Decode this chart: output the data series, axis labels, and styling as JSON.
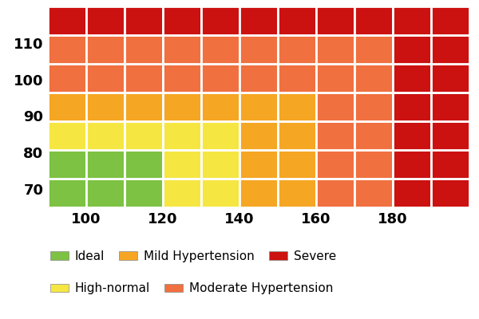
{
  "x_ticks": [
    100,
    120,
    140,
    160,
    180
  ],
  "y_ticks": [
    70,
    80,
    90,
    100,
    110
  ],
  "colors": {
    "ideal": "#7DC242",
    "high_normal": "#F5E642",
    "mild": "#F5A623",
    "moderate": "#F07040",
    "severe": "#CC1111"
  },
  "legend_items": [
    {
      "label": "Ideal",
      "color": "#7DC242"
    },
    {
      "label": "High-normal",
      "color": "#F5E642"
    },
    {
      "label": "Mild Hypertension",
      "color": "#F5A623"
    },
    {
      "label": "Moderate Hypertension",
      "color": "#F07040"
    },
    {
      "label": "Severe",
      "color": "#CC1111"
    }
  ],
  "background_color": "#ffffff",
  "grid_color": "#ffffff",
  "grid_linewidth": 2,
  "tick_fontsize": 13,
  "legend_fontsize": 11
}
